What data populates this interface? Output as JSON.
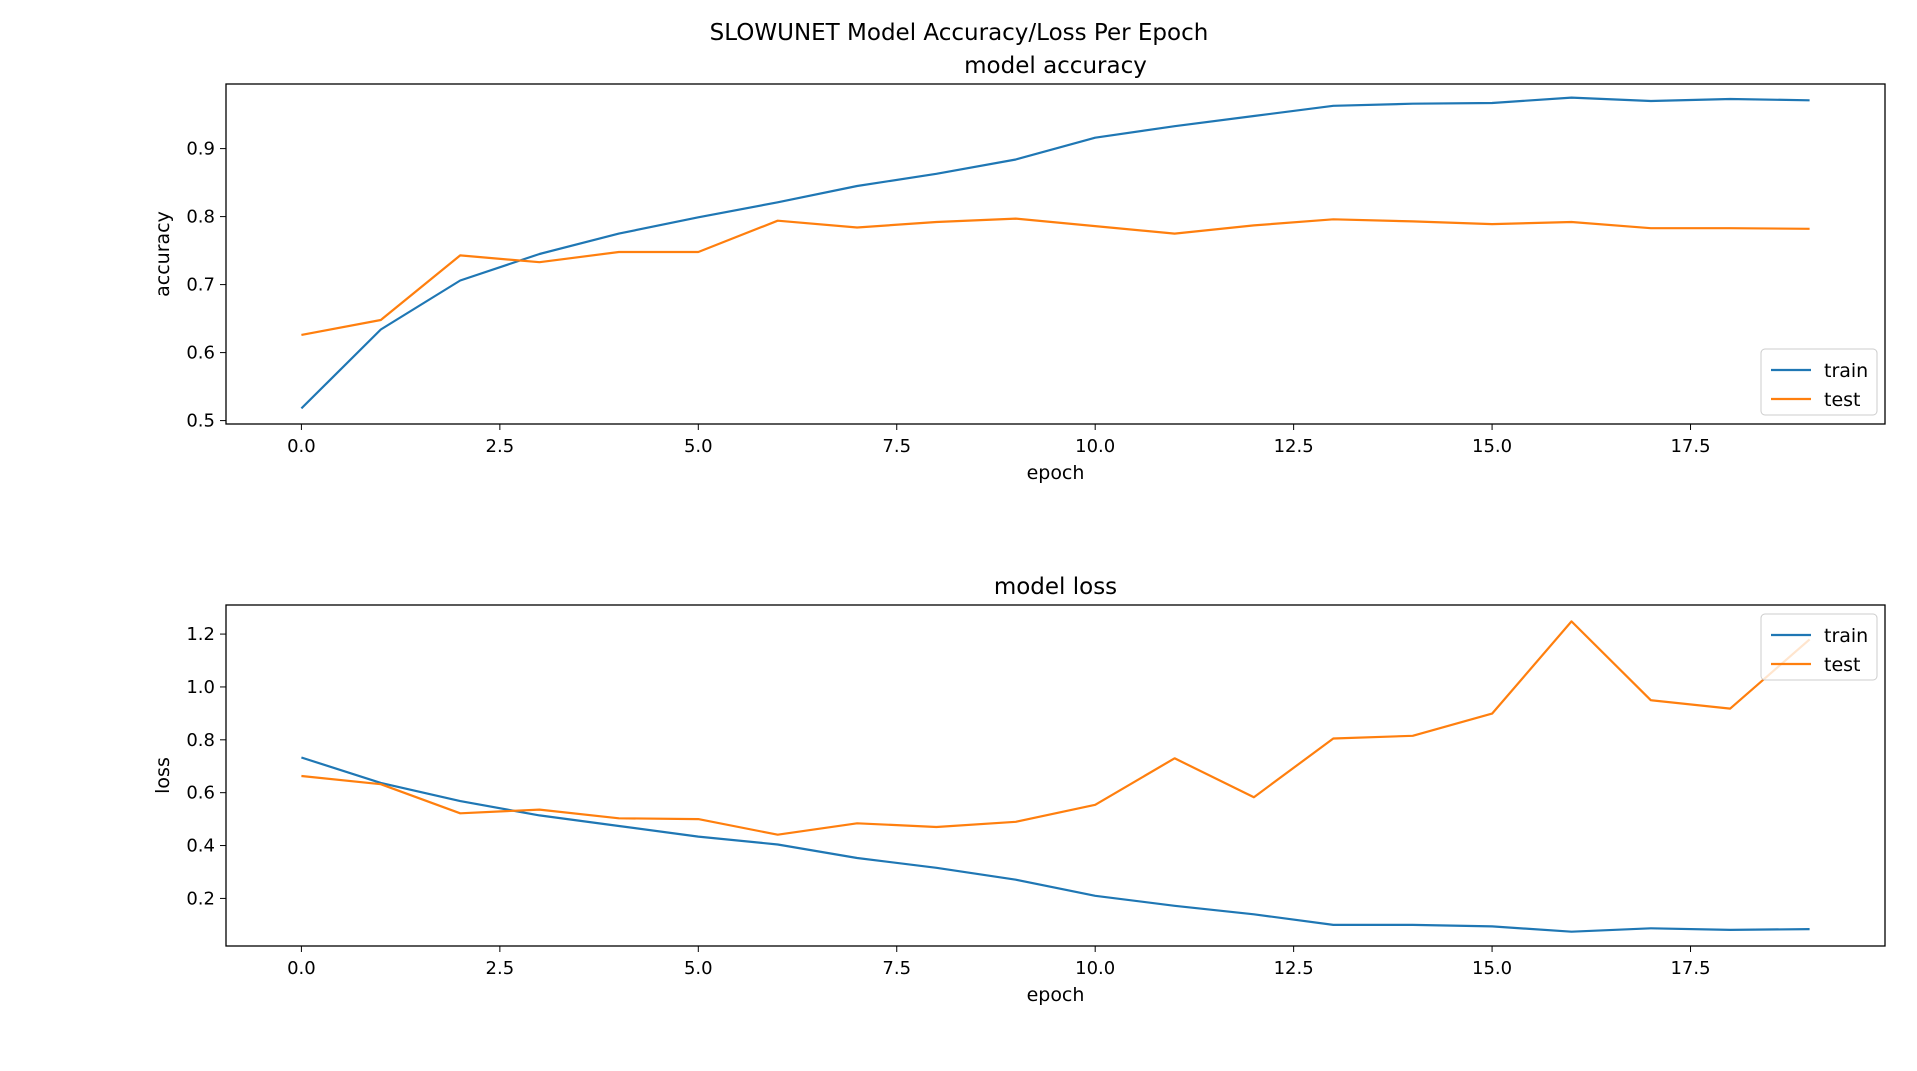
{
  "figure": {
    "suptitle": "SLOWUNET Model Accuracy/Loss Per Epoch"
  },
  "chart_data": [
    {
      "type": "line",
      "title": "model accuracy",
      "xlabel": "epoch",
      "ylabel": "accuracy",
      "xlim": [
        -0.95,
        19.95
      ],
      "ylim": [
        0.495,
        0.995
      ],
      "xticks": [
        0.0,
        2.5,
        5.0,
        7.5,
        10.0,
        12.5,
        15.0,
        17.5
      ],
      "xtick_labels": [
        "0.0",
        "2.5",
        "5.0",
        "7.5",
        "10.0",
        "12.5",
        "15.0",
        "17.5"
      ],
      "yticks": [
        0.5,
        0.6,
        0.7,
        0.8,
        0.9
      ],
      "ytick_labels": [
        "0.5",
        "0.6",
        "0.7",
        "0.8",
        "0.9"
      ],
      "grid": false,
      "legend_position": "lower-right",
      "x": [
        0,
        1,
        2,
        3,
        4,
        5,
        6,
        7,
        8,
        9,
        10,
        11,
        12,
        13,
        14,
        15,
        16,
        17,
        18,
        19
      ],
      "series": [
        {
          "name": "train",
          "color": "#1f77b4",
          "values": [
            0.518,
            0.634,
            0.706,
            0.745,
            0.775,
            0.799,
            0.821,
            0.845,
            0.863,
            0.884,
            0.916,
            0.933,
            0.948,
            0.963,
            0.966,
            0.967,
            0.975,
            0.97,
            0.973,
            0.971
          ]
        },
        {
          "name": "test",
          "color": "#ff7f0e",
          "values": [
            0.626,
            0.648,
            0.743,
            0.733,
            0.748,
            0.748,
            0.794,
            0.784,
            0.792,
            0.797,
            0.786,
            0.775,
            0.787,
            0.796,
            0.793,
            0.789,
            0.792,
            0.783,
            0.783,
            0.782
          ]
        }
      ]
    },
    {
      "type": "line",
      "title": "model loss",
      "xlabel": "epoch",
      "ylabel": "loss",
      "xlim": [
        -0.95,
        19.95
      ],
      "ylim": [
        0.02,
        1.31
      ],
      "xticks": [
        0.0,
        2.5,
        5.0,
        7.5,
        10.0,
        12.5,
        15.0,
        17.5
      ],
      "xtick_labels": [
        "0.0",
        "2.5",
        "5.0",
        "7.5",
        "10.0",
        "12.5",
        "15.0",
        "17.5"
      ],
      "yticks": [
        0.2,
        0.4,
        0.6,
        0.8,
        1.0,
        1.2
      ],
      "ytick_labels": [
        "0.2",
        "0.4",
        "0.6",
        "0.8",
        "1.0",
        "1.2"
      ],
      "grid": false,
      "legend_position": "upper-right",
      "x": [
        0,
        1,
        2,
        3,
        4,
        5,
        6,
        7,
        8,
        9,
        10,
        11,
        12,
        13,
        14,
        15,
        16,
        17,
        18,
        19
      ],
      "series": [
        {
          "name": "train",
          "color": "#1f77b4",
          "values": [
            0.733,
            0.637,
            0.568,
            0.514,
            0.474,
            0.434,
            0.404,
            0.353,
            0.316,
            0.271,
            0.21,
            0.172,
            0.14,
            0.1,
            0.1,
            0.094,
            0.074,
            0.087,
            0.081,
            0.084
          ]
        },
        {
          "name": "test",
          "color": "#ff7f0e",
          "values": [
            0.663,
            0.632,
            0.522,
            0.536,
            0.503,
            0.5,
            0.441,
            0.484,
            0.47,
            0.49,
            0.554,
            0.73,
            0.583,
            0.805,
            0.815,
            0.899,
            1.248,
            0.95,
            0.918,
            1.18
          ]
        }
      ]
    }
  ]
}
